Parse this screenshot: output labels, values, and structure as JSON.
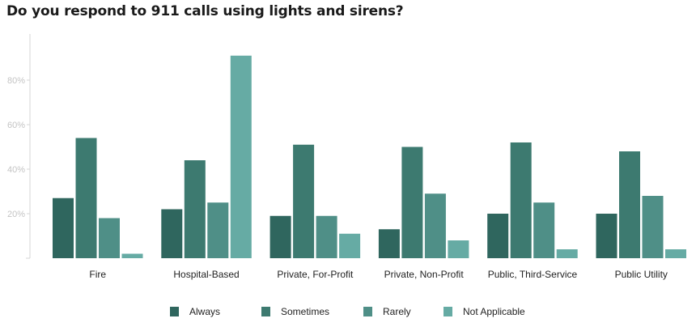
{
  "chart_data": {
    "type": "bar",
    "title": "Do you respond to 911 calls using lights and sirens?",
    "categories": [
      "Fire",
      "Hospital-Based",
      "Private, For-Profit",
      "Private, Non-Profit",
      "Public, Third-Service",
      "Public Utility"
    ],
    "series": [
      {
        "name": "Always",
        "color": "#2f665e",
        "values": [
          27,
          22,
          19,
          13,
          20,
          20
        ]
      },
      {
        "name": "Sometimes",
        "color": "#3d7a70",
        "values": [
          54,
          44,
          51,
          50,
          52,
          48
        ]
      },
      {
        "name": "Rarely",
        "color": "#4f8f87",
        "values": [
          18,
          25,
          19,
          29,
          25,
          28
        ]
      },
      {
        "name": "Not Applicable",
        "color": "#66aba4",
        "values": [
          2,
          91,
          11,
          8,
          4,
          4
        ]
      }
    ],
    "yticks": [
      20,
      40,
      60,
      80
    ],
    "ytick_labels": [
      "20%",
      "40%",
      "60%",
      "80%"
    ],
    "ylim": [
      0,
      100
    ],
    "ylabel": "",
    "xlabel": "",
    "legend_position": "bottom-center",
    "grid": false
  }
}
